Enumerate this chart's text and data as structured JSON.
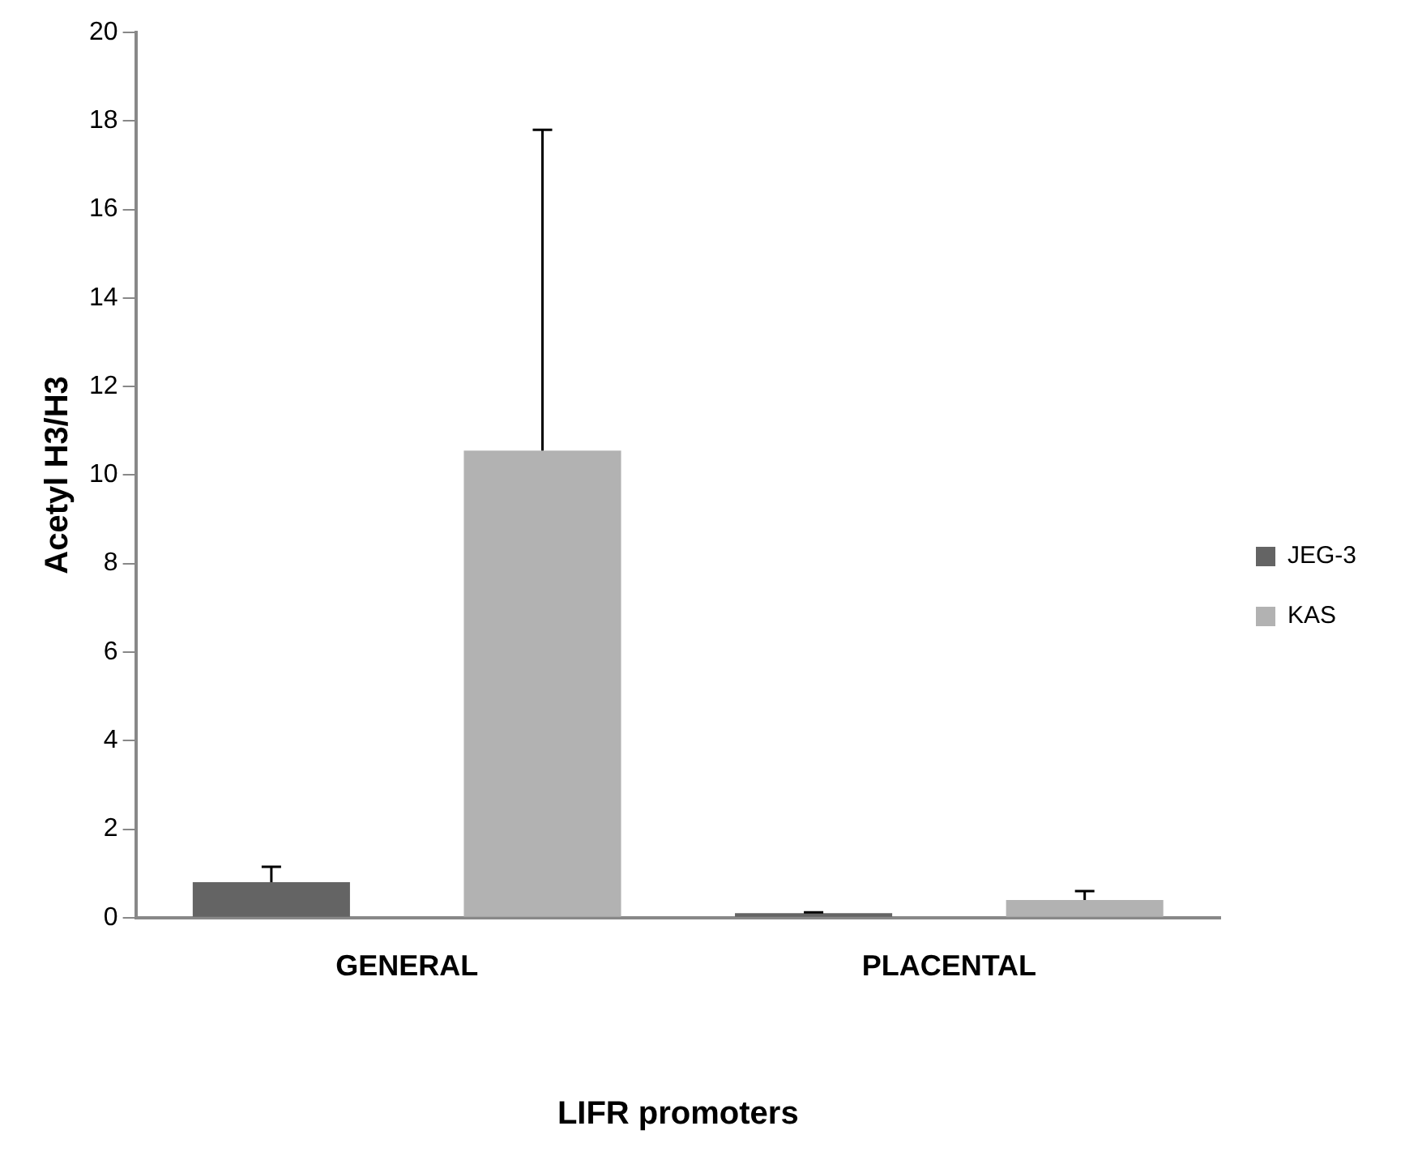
{
  "chart_data": {
    "type": "bar",
    "xlabel": "LIFR promoters",
    "ylabel": "Acetyl H3/H3",
    "categories": [
      "GENERAL",
      "PLACENTAL"
    ],
    "series": [
      {
        "name": "JEG-3",
        "color": "#646464",
        "values": [
          0.8,
          0.1
        ],
        "errors": [
          [
            0.8,
            1.15
          ],
          [
            0.1,
            0.12
          ]
        ]
      },
      {
        "name": "KAS",
        "color": "#b2b2b2",
        "values": [
          10.55,
          0.4
        ],
        "errors": [
          [
            10.55,
            17.8
          ],
          [
            0.4,
            0.6
          ]
        ]
      }
    ],
    "ylim": [
      0,
      20
    ],
    "yticks": [
      0,
      2,
      4,
      6,
      8,
      10,
      12,
      14,
      16,
      18,
      20
    ],
    "grid": false,
    "legend": "right"
  }
}
